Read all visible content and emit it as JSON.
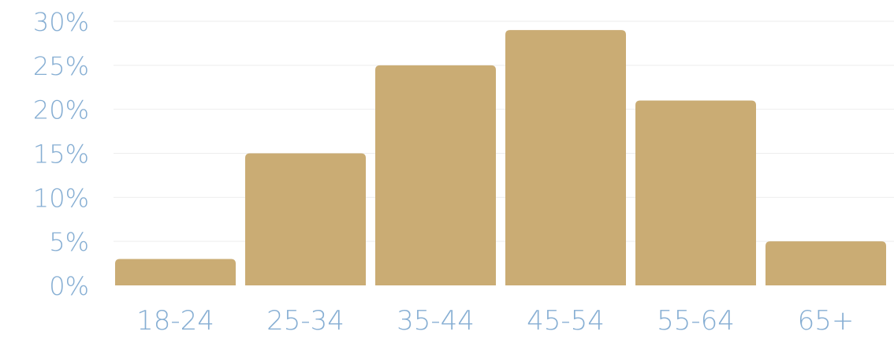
{
  "chart_data": {
    "type": "bar",
    "categories": [
      "18-24",
      "25-34",
      "35-44",
      "45-54",
      "55-64",
      "65+"
    ],
    "values": [
      3,
      15,
      25,
      29,
      21,
      5
    ],
    "y_ticks": [
      "0%",
      "5%",
      "10%",
      "15%",
      "20%",
      "25%",
      "30%"
    ],
    "ylim": [
      0,
      30
    ],
    "grid": true,
    "title": "",
    "xlabel": "",
    "ylabel": ""
  },
  "colors": {
    "bar": "#caac74",
    "label": "#86aed3",
    "grid": "#eeeeee"
  }
}
